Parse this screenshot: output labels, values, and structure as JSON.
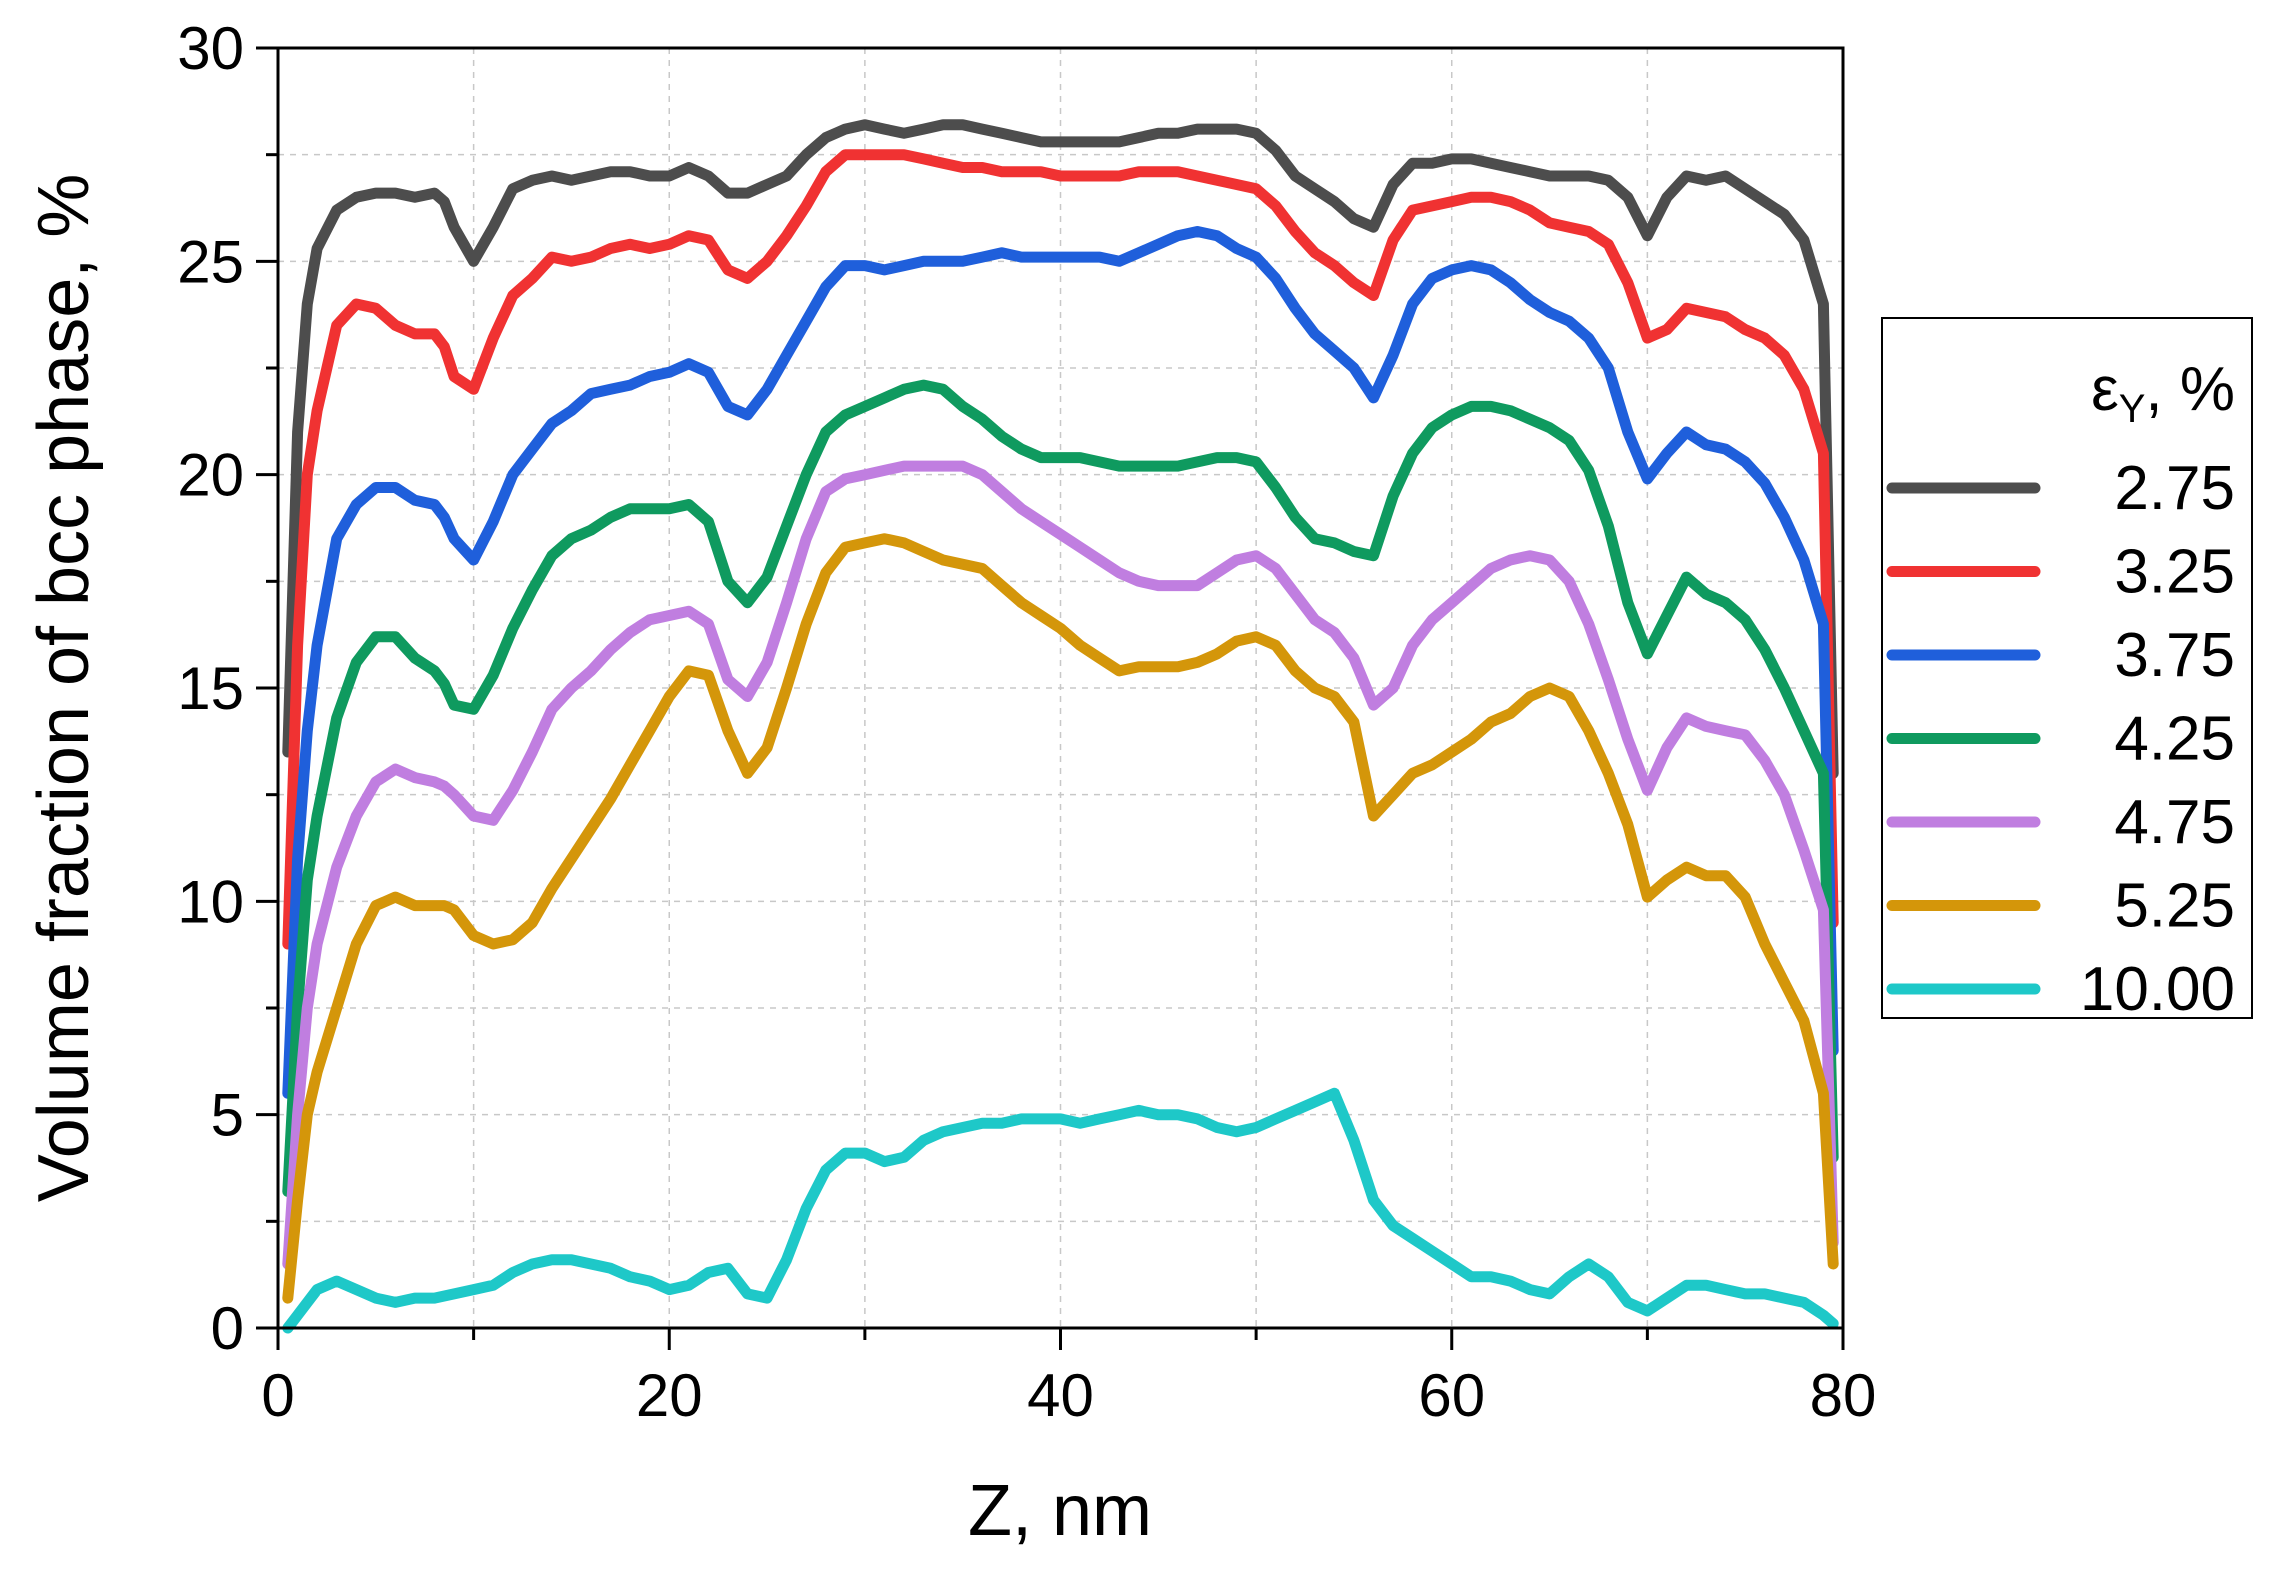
{
  "chart_data": {
    "type": "line",
    "xlabel": "Z, nm",
    "ylabel": "Volume fraction of bcc phase, %",
    "xlim": [
      0,
      80
    ],
    "ylim": [
      0,
      30
    ],
    "xticks": [
      0,
      20,
      40,
      60,
      80
    ],
    "yticks": [
      0,
      5,
      10,
      15,
      20,
      25,
      30
    ],
    "grid": true,
    "legend": {
      "title": "εY, %",
      "title_main": "ε",
      "title_sub": "Y",
      "title_suffix": ", %",
      "position": "right"
    },
    "series": [
      {
        "name": "2.75",
        "color": "#4d4d4d",
        "x": [
          0.5,
          1,
          1.5,
          2,
          3,
          4,
          5,
          6,
          7,
          8,
          8.5,
          9,
          10,
          11,
          12,
          13,
          14,
          15,
          16,
          17,
          18,
          19,
          20,
          21,
          22,
          23,
          24,
          25,
          26,
          27,
          28,
          29,
          30,
          31,
          32,
          33,
          34,
          35,
          36,
          37,
          38,
          39,
          40,
          41,
          42,
          43,
          44,
          45,
          46,
          47,
          48,
          49,
          50,
          51,
          52,
          53,
          54,
          55,
          56,
          57,
          58,
          59,
          60,
          61,
          62,
          63,
          64,
          65,
          66,
          67,
          68,
          69,
          70,
          71,
          72,
          73,
          74,
          75,
          76,
          77,
          78,
          79,
          79.5
        ],
        "y": [
          13.5,
          21,
          24,
          25.3,
          26.2,
          26.5,
          26.6,
          26.6,
          26.5,
          26.6,
          26.4,
          25.8,
          25.0,
          25.8,
          26.7,
          26.9,
          27.0,
          26.9,
          27.0,
          27.1,
          27.1,
          27.0,
          27.0,
          27.2,
          27.0,
          26.6,
          26.6,
          26.8,
          27.0,
          27.5,
          27.9,
          28.1,
          28.2,
          28.1,
          28.0,
          28.1,
          28.2,
          28.2,
          28.1,
          28.0,
          27.9,
          27.8,
          27.8,
          27.8,
          27.8,
          27.8,
          27.9,
          28.0,
          28.0,
          28.1,
          28.1,
          28.1,
          28.0,
          27.6,
          27.0,
          26.7,
          26.4,
          26.0,
          25.8,
          26.8,
          27.3,
          27.3,
          27.4,
          27.4,
          27.3,
          27.2,
          27.1,
          27.0,
          27.0,
          27.0,
          26.9,
          26.5,
          25.6,
          26.5,
          27.0,
          26.9,
          27.0,
          26.7,
          26.4,
          26.1,
          25.5,
          24.0,
          13.0
        ]
      },
      {
        "name": "3.25",
        "color": "#f03232",
        "x": [
          0.5,
          1,
          1.5,
          2,
          3,
          4,
          5,
          6,
          7,
          8,
          8.5,
          9,
          10,
          11,
          12,
          13,
          14,
          15,
          16,
          17,
          18,
          19,
          20,
          21,
          22,
          23,
          24,
          25,
          26,
          27,
          28,
          29,
          30,
          31,
          32,
          33,
          34,
          35,
          36,
          37,
          38,
          39,
          40,
          41,
          42,
          43,
          44,
          45,
          46,
          47,
          48,
          49,
          50,
          51,
          52,
          53,
          54,
          55,
          56,
          57,
          58,
          59,
          60,
          61,
          62,
          63,
          64,
          65,
          66,
          67,
          68,
          69,
          70,
          71,
          72,
          73,
          74,
          75,
          76,
          77,
          78,
          79,
          79.5
        ],
        "y": [
          9.0,
          16,
          20,
          21.5,
          23.5,
          24.0,
          23.9,
          23.5,
          23.3,
          23.3,
          23.0,
          22.3,
          22.0,
          23.2,
          24.2,
          24.6,
          25.1,
          25.0,
          25.1,
          25.3,
          25.4,
          25.3,
          25.4,
          25.6,
          25.5,
          24.8,
          24.6,
          25.0,
          25.6,
          26.3,
          27.1,
          27.5,
          27.5,
          27.5,
          27.5,
          27.4,
          27.3,
          27.2,
          27.2,
          27.1,
          27.1,
          27.1,
          27.0,
          27.0,
          27.0,
          27.0,
          27.1,
          27.1,
          27.1,
          27.0,
          26.9,
          26.8,
          26.7,
          26.3,
          25.7,
          25.2,
          24.9,
          24.5,
          24.2,
          25.5,
          26.2,
          26.3,
          26.4,
          26.5,
          26.5,
          26.4,
          26.2,
          25.9,
          25.8,
          25.7,
          25.4,
          24.5,
          23.2,
          23.4,
          23.9,
          23.8,
          23.7,
          23.4,
          23.2,
          22.8,
          22.0,
          20.5,
          9.5
        ]
      },
      {
        "name": "3.75",
        "color": "#1f5fdb",
        "x": [
          0.5,
          1,
          1.5,
          2,
          3,
          4,
          5,
          6,
          7,
          8,
          8.5,
          9,
          10,
          11,
          12,
          13,
          14,
          15,
          16,
          17,
          18,
          19,
          20,
          21,
          22,
          23,
          24,
          25,
          26,
          27,
          28,
          29,
          30,
          31,
          32,
          33,
          34,
          35,
          36,
          37,
          38,
          39,
          40,
          41,
          42,
          43,
          44,
          45,
          46,
          47,
          48,
          49,
          50,
          51,
          52,
          53,
          54,
          55,
          56,
          57,
          58,
          59,
          60,
          61,
          62,
          63,
          64,
          65,
          66,
          67,
          68,
          69,
          70,
          71,
          72,
          73,
          74,
          75,
          76,
          77,
          78,
          79,
          79.5
        ],
        "y": [
          5.5,
          11,
          14,
          16,
          18.5,
          19.3,
          19.7,
          19.7,
          19.4,
          19.3,
          19.0,
          18.5,
          18.0,
          18.9,
          20.0,
          20.6,
          21.2,
          21.5,
          21.9,
          22.0,
          22.1,
          22.3,
          22.4,
          22.6,
          22.4,
          21.6,
          21.4,
          22.0,
          22.8,
          23.6,
          24.4,
          24.9,
          24.9,
          24.8,
          24.9,
          25.0,
          25.0,
          25.0,
          25.1,
          25.2,
          25.1,
          25.1,
          25.1,
          25.1,
          25.1,
          25.0,
          25.2,
          25.4,
          25.6,
          25.7,
          25.6,
          25.3,
          25.1,
          24.6,
          23.9,
          23.3,
          22.9,
          22.5,
          21.8,
          22.8,
          24.0,
          24.6,
          24.8,
          24.9,
          24.8,
          24.5,
          24.1,
          23.8,
          23.6,
          23.2,
          22.5,
          21.0,
          19.9,
          20.5,
          21.0,
          20.7,
          20.6,
          20.3,
          19.8,
          19.0,
          18.0,
          16.5,
          6.5
        ]
      },
      {
        "name": "4.25",
        "color": "#0f9a5f",
        "x": [
          0.5,
          1,
          1.5,
          2,
          3,
          4,
          5,
          6,
          7,
          8,
          8.5,
          9,
          10,
          11,
          12,
          13,
          14,
          15,
          16,
          17,
          18,
          19,
          20,
          21,
          22,
          23,
          24,
          25,
          26,
          27,
          28,
          29,
          30,
          31,
          32,
          33,
          34,
          35,
          36,
          37,
          38,
          39,
          40,
          41,
          42,
          43,
          44,
          45,
          46,
          47,
          48,
          49,
          50,
          51,
          52,
          53,
          54,
          55,
          56,
          57,
          58,
          59,
          60,
          61,
          62,
          63,
          64,
          65,
          66,
          67,
          68,
          69,
          70,
          71,
          72,
          73,
          74,
          75,
          76,
          77,
          78,
          79,
          79.5
        ],
        "y": [
          3.2,
          7.5,
          10.5,
          12,
          14.3,
          15.6,
          16.2,
          16.2,
          15.7,
          15.4,
          15.1,
          14.6,
          14.5,
          15.3,
          16.4,
          17.3,
          18.1,
          18.5,
          18.7,
          19.0,
          19.2,
          19.2,
          19.2,
          19.3,
          18.9,
          17.5,
          17.0,
          17.6,
          18.8,
          20.0,
          21.0,
          21.4,
          21.6,
          21.8,
          22.0,
          22.1,
          22.0,
          21.6,
          21.3,
          20.9,
          20.6,
          20.4,
          20.4,
          20.4,
          20.3,
          20.2,
          20.2,
          20.2,
          20.2,
          20.3,
          20.4,
          20.4,
          20.3,
          19.7,
          19.0,
          18.5,
          18.4,
          18.2,
          18.1,
          19.5,
          20.5,
          21.1,
          21.4,
          21.6,
          21.6,
          21.5,
          21.3,
          21.1,
          20.8,
          20.1,
          18.8,
          17.0,
          15.8,
          16.7,
          17.6,
          17.2,
          17.0,
          16.6,
          15.9,
          15.0,
          14.0,
          13.0,
          4.0
        ]
      },
      {
        "name": "4.75",
        "color": "#c07ee0",
        "x": [
          0.5,
          1,
          1.5,
          2,
          3,
          4,
          5,
          6,
          7,
          8,
          8.5,
          9,
          10,
          11,
          12,
          13,
          14,
          15,
          16,
          17,
          18,
          19,
          20,
          21,
          22,
          23,
          24,
          25,
          26,
          27,
          28,
          29,
          30,
          31,
          32,
          33,
          34,
          35,
          36,
          37,
          38,
          39,
          40,
          41,
          42,
          43,
          44,
          45,
          46,
          47,
          48,
          49,
          50,
          51,
          52,
          53,
          54,
          55,
          56,
          57,
          58,
          59,
          60,
          61,
          62,
          63,
          64,
          65,
          66,
          67,
          68,
          69,
          70,
          71,
          72,
          73,
          74,
          75,
          76,
          77,
          78,
          79,
          79.5
        ],
        "y": [
          1.5,
          5,
          7.5,
          9,
          10.8,
          12.0,
          12.8,
          13.1,
          12.9,
          12.8,
          12.7,
          12.5,
          12.0,
          11.9,
          12.6,
          13.5,
          14.5,
          15.0,
          15.4,
          15.9,
          16.3,
          16.6,
          16.7,
          16.8,
          16.5,
          15.2,
          14.8,
          15.6,
          17.0,
          18.5,
          19.6,
          19.9,
          20.0,
          20.1,
          20.2,
          20.2,
          20.2,
          20.2,
          20.0,
          19.6,
          19.2,
          18.9,
          18.6,
          18.3,
          18.0,
          17.7,
          17.5,
          17.4,
          17.4,
          17.4,
          17.7,
          18.0,
          18.1,
          17.8,
          17.2,
          16.6,
          16.3,
          15.7,
          14.6,
          15.0,
          16.0,
          16.6,
          17.0,
          17.4,
          17.8,
          18.0,
          18.1,
          18.0,
          17.5,
          16.5,
          15.2,
          13.8,
          12.6,
          13.6,
          14.3,
          14.1,
          14.0,
          13.9,
          13.3,
          12.5,
          11.2,
          9.8,
          2.0
        ]
      },
      {
        "name": "5.25",
        "color": "#d4960a",
        "x": [
          0.5,
          1,
          1.5,
          2,
          3,
          4,
          5,
          6,
          7,
          8,
          8.5,
          9,
          10,
          11,
          12,
          13,
          14,
          15,
          16,
          17,
          18,
          19,
          20,
          21,
          22,
          23,
          24,
          25,
          26,
          27,
          28,
          29,
          30,
          31,
          32,
          33,
          34,
          35,
          36,
          37,
          38,
          39,
          40,
          41,
          42,
          43,
          44,
          45,
          46,
          47,
          48,
          49,
          50,
          51,
          52,
          53,
          54,
          55,
          56,
          57,
          58,
          59,
          60,
          61,
          62,
          63,
          64,
          65,
          66,
          67,
          68,
          69,
          70,
          71,
          72,
          73,
          74,
          75,
          76,
          77,
          78,
          79,
          79.5
        ],
        "y": [
          0.7,
          3,
          5,
          6,
          7.5,
          9.0,
          9.9,
          10.1,
          9.9,
          9.9,
          9.9,
          9.8,
          9.2,
          9.0,
          9.1,
          9.5,
          10.3,
          11.0,
          11.7,
          12.4,
          13.2,
          14.0,
          14.8,
          15.4,
          15.3,
          14.0,
          13.0,
          13.6,
          15.0,
          16.5,
          17.7,
          18.3,
          18.4,
          18.5,
          18.4,
          18.2,
          18.0,
          17.9,
          17.8,
          17.4,
          17.0,
          16.7,
          16.4,
          16.0,
          15.7,
          15.4,
          15.5,
          15.5,
          15.5,
          15.6,
          15.8,
          16.1,
          16.2,
          16.0,
          15.4,
          15.0,
          14.8,
          14.2,
          12.0,
          12.5,
          13.0,
          13.2,
          13.5,
          13.8,
          14.2,
          14.4,
          14.8,
          15.0,
          14.8,
          14.0,
          13.0,
          11.8,
          10.1,
          10.5,
          10.8,
          10.6,
          10.6,
          10.1,
          9.0,
          8.1,
          7.2,
          5.5,
          1.5
        ]
      },
      {
        "name": "10.00",
        "color": "#1ec8c8",
        "x": [
          0.5,
          1,
          1.5,
          2,
          3,
          4,
          5,
          6,
          7,
          8,
          9,
          10,
          11,
          12,
          13,
          14,
          15,
          16,
          17,
          18,
          19,
          20,
          21,
          22,
          23,
          24,
          25,
          26,
          27,
          28,
          29,
          30,
          31,
          32,
          33,
          34,
          35,
          36,
          37,
          38,
          39,
          40,
          41,
          42,
          43,
          44,
          45,
          46,
          47,
          48,
          49,
          50,
          51,
          52,
          53,
          54,
          55,
          56,
          57,
          58,
          59,
          60,
          61,
          62,
          63,
          64,
          65,
          66,
          67,
          68,
          69,
          70,
          71,
          72,
          73,
          74,
          75,
          76,
          77,
          78,
          79,
          79.5
        ],
        "y": [
          0.0,
          0.3,
          0.6,
          0.9,
          1.1,
          0.9,
          0.7,
          0.6,
          0.7,
          0.7,
          0.8,
          0.9,
          1.0,
          1.3,
          1.5,
          1.6,
          1.6,
          1.5,
          1.4,
          1.2,
          1.1,
          0.9,
          1.0,
          1.3,
          1.4,
          0.8,
          0.7,
          1.6,
          2.8,
          3.7,
          4.1,
          4.1,
          3.9,
          4.0,
          4.4,
          4.6,
          4.7,
          4.8,
          4.8,
          4.9,
          4.9,
          4.9,
          4.8,
          4.9,
          5.0,
          5.1,
          5.0,
          5.0,
          4.9,
          4.7,
          4.6,
          4.7,
          4.9,
          5.1,
          5.3,
          5.5,
          4.4,
          3.0,
          2.4,
          2.1,
          1.8,
          1.5,
          1.2,
          1.2,
          1.1,
          0.9,
          0.8,
          1.2,
          1.5,
          1.2,
          0.6,
          0.4,
          0.7,
          1.0,
          1.0,
          0.9,
          0.8,
          0.8,
          0.7,
          0.6,
          0.3,
          0.1
        ]
      }
    ]
  }
}
